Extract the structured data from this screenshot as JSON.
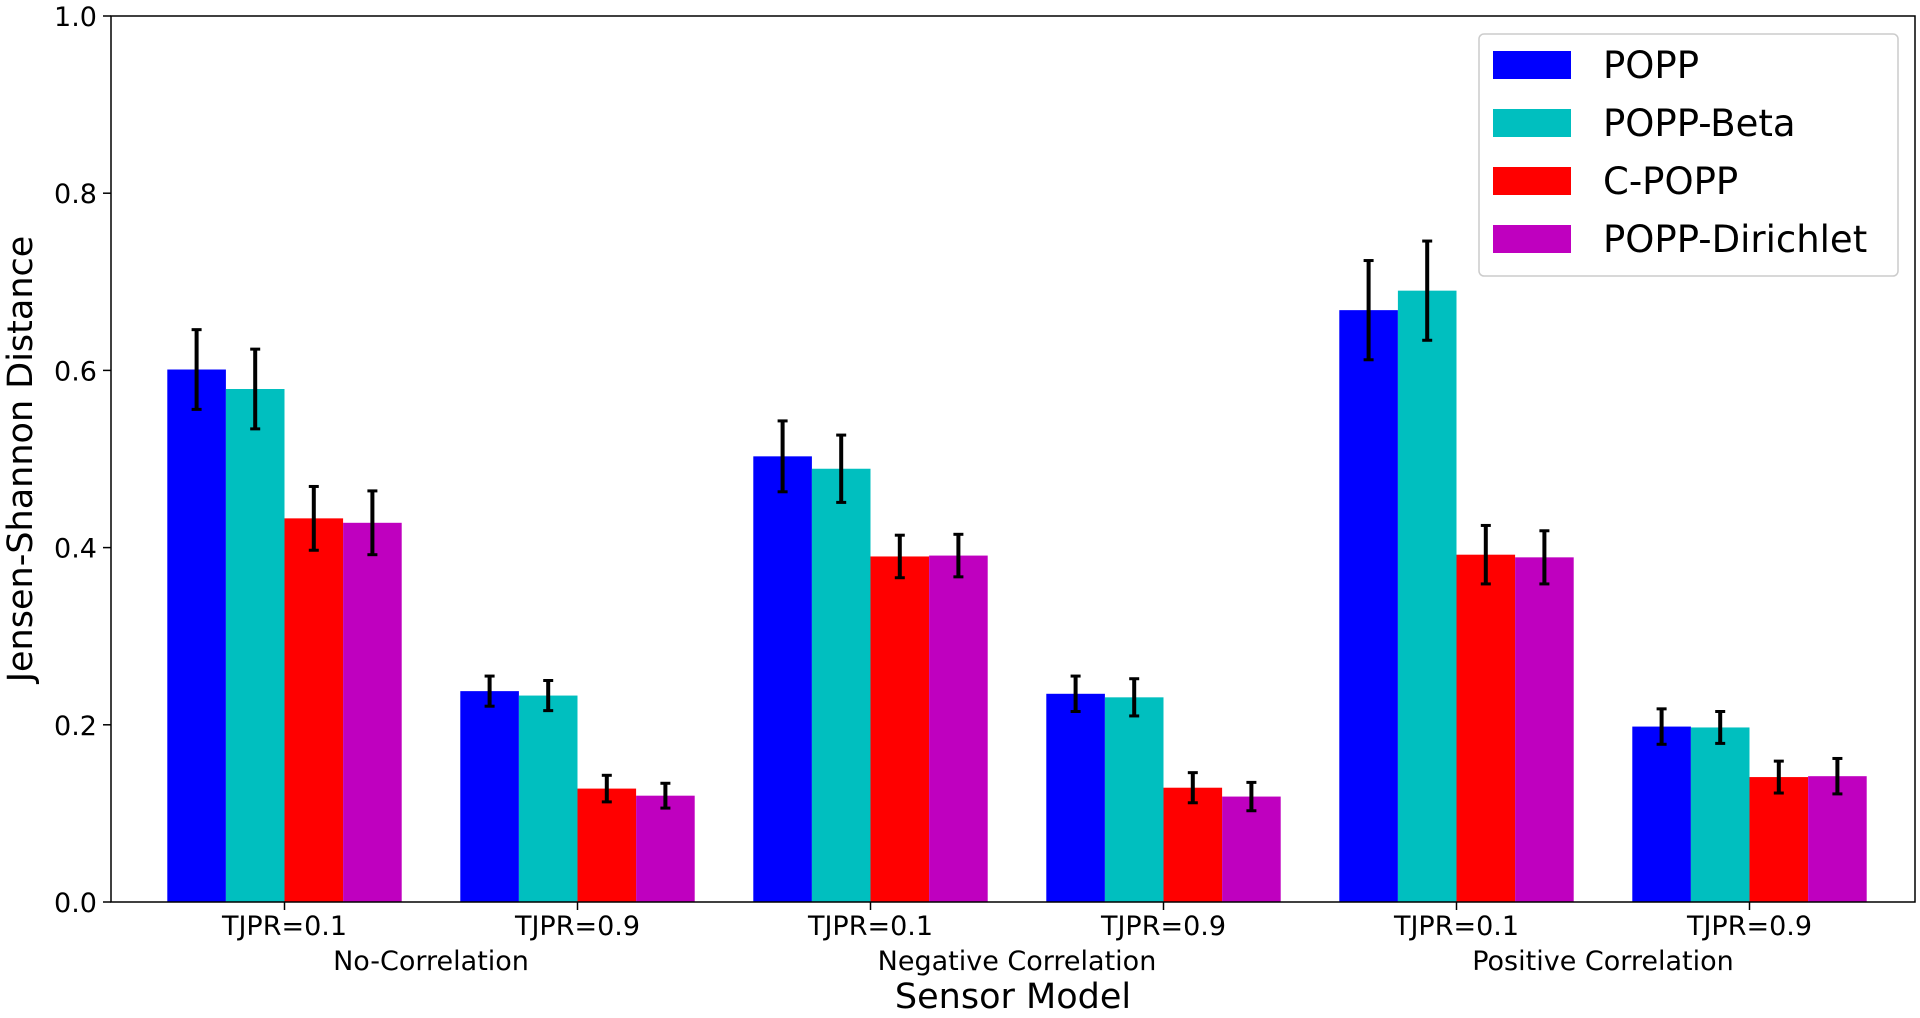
{
  "chart_data": {
    "type": "bar",
    "title": "",
    "xlabel": "Sensor Model",
    "ylabel": "Jensen-Shannon Distance",
    "ylim": [
      0.0,
      1.0
    ],
    "yticks": [
      "0.0",
      "0.2",
      "0.4",
      "0.6",
      "0.8",
      "1.0"
    ],
    "grid": false,
    "legend_placement": "top-right",
    "categories": [
      "TJPR=0.1",
      "TJPR=0.9",
      "TJPR=0.1",
      "TJPR=0.9",
      "TJPR=0.1",
      "TJPR=0.9"
    ],
    "groups": [
      "No-Correlation",
      "Negative Correlation",
      "Positive Correlation"
    ],
    "series": [
      {
        "name": "POPP",
        "color": "#0000ff",
        "values": [
          0.601,
          0.238,
          0.503,
          0.235,
          0.668,
          0.198
        ],
        "errors": [
          0.045,
          0.017,
          0.04,
          0.02,
          0.056,
          0.02
        ]
      },
      {
        "name": "POPP-Beta",
        "color": "#00bfbf",
        "values": [
          0.579,
          0.233,
          0.489,
          0.231,
          0.69,
          0.197
        ],
        "errors": [
          0.045,
          0.017,
          0.038,
          0.021,
          0.056,
          0.018
        ]
      },
      {
        "name": "C-POPP",
        "color": "#ff0000",
        "values": [
          0.433,
          0.128,
          0.39,
          0.129,
          0.392,
          0.141
        ],
        "errors": [
          0.036,
          0.015,
          0.024,
          0.017,
          0.033,
          0.018
        ]
      },
      {
        "name": "POPP-Dirichlet",
        "color": "#bf00bf",
        "values": [
          0.428,
          0.12,
          0.391,
          0.119,
          0.389,
          0.142
        ],
        "errors": [
          0.036,
          0.014,
          0.024,
          0.016,
          0.03,
          0.02
        ]
      }
    ]
  }
}
